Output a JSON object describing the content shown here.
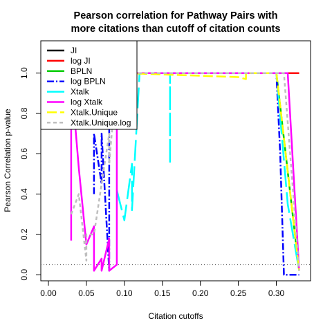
{
  "chart_data": {
    "type": "line",
    "title_lines": [
      "Pearson correlation for Pathway Pairs with",
      "more citations than cutoff of citation counts"
    ],
    "xlabel": "Citation cutoffs",
    "ylabel": "Pearson Correlation p-value",
    "xlim": [
      -0.01,
      0.345
    ],
    "ylim": [
      -0.03,
      1.16
    ],
    "x_ticks": [
      0.0,
      0.05,
      0.1,
      0.15,
      0.2,
      0.25,
      0.3
    ],
    "x_tick_labels": [
      "0.00",
      "0.05",
      "0.10",
      "0.15",
      "0.20",
      "0.25",
      "0.30"
    ],
    "y_ticks": [
      0.0,
      0.2,
      0.4,
      0.6,
      0.8,
      1.0
    ],
    "y_tick_labels": [
      "0.0",
      "0.2",
      "0.4",
      "0.6",
      "0.8",
      "1.0"
    ],
    "reference_line": {
      "y": 0.05,
      "style": "dotted",
      "color": "#555555"
    },
    "legend_position": "top-left",
    "series": [
      {
        "name": "JI",
        "color": "#000000",
        "dash": "",
        "width": 2.5,
        "x": [
          0.1,
          0.33
        ],
        "y": [
          1.0,
          1.0
        ]
      },
      {
        "name": "log JI",
        "color": "#ff0000",
        "dash": "",
        "width": 2.5,
        "x": [
          0.1,
          0.33
        ],
        "y": [
          1.0,
          1.0
        ]
      },
      {
        "name": "BPLN",
        "color": "#00cd00",
        "dash": "",
        "width": 2.5,
        "x": [
          0.1,
          0.3,
          0.33
        ],
        "y": [
          1.0,
          1.0,
          0.02
        ]
      },
      {
        "name": "log BPLN",
        "color": "#0000ff",
        "dash": "10,3,2,3",
        "width": 2.5,
        "x": [
          0.06,
          0.06,
          0.07,
          0.07,
          0.08,
          0.08,
          0.09,
          0.1,
          0.3,
          0.305,
          0.31,
          0.31,
          0.32,
          0.33
        ],
        "y": [
          0.4,
          0.7,
          0.45,
          0.7,
          0.02,
          1.0,
          1.0,
          1.0,
          1.0,
          0.6,
          0.0,
          0.0,
          0.0,
          0.0
        ]
      },
      {
        "name": "Xtalk",
        "color": "#00ffff",
        "dash": "30,8",
        "width": 2.5,
        "x": [
          0.09,
          0.1,
          0.11,
          0.11,
          0.12,
          0.16,
          0.16,
          0.16,
          0.17,
          0.3,
          0.315,
          0.33
        ],
        "y": [
          0.42,
          0.27,
          0.55,
          0.32,
          1.0,
          1.0,
          0.55,
          1.0,
          1.0,
          1.0,
          0.35,
          0.02
        ]
      },
      {
        "name": "log Xtalk",
        "color": "#ff00ff",
        "dash": "",
        "width": 2.5,
        "x": [
          0.03,
          0.03,
          0.04,
          0.05,
          0.06,
          0.06,
          0.07,
          0.07,
          0.08,
          0.08,
          0.09,
          0.09,
          0.1,
          0.31,
          0.315,
          0.33
        ],
        "y": [
          0.17,
          0.98,
          0.53,
          0.15,
          0.24,
          0.02,
          0.08,
          0.02,
          0.18,
          0.02,
          0.05,
          1.0,
          1.0,
          1.0,
          1.0,
          0.02
        ]
      },
      {
        "name": "Xtalk.Unique",
        "color": "#ffff00",
        "dash": "14,5",
        "width": 2.5,
        "x": [
          0.1,
          0.25,
          0.26,
          0.26,
          0.3,
          0.33
        ],
        "y": [
          1.0,
          0.98,
          0.97,
          1.0,
          1.0,
          0.02
        ]
      },
      {
        "name": "Xtalk.Unique.log",
        "color": "#bebebe",
        "dash": "5,4",
        "width": 2.5,
        "x": [
          0.03,
          0.04,
          0.05,
          0.05,
          0.06,
          0.08,
          0.08,
          0.09,
          0.1,
          0.3,
          0.31,
          0.33
        ],
        "y": [
          0.3,
          0.4,
          0.07,
          0.2,
          0.2,
          0.7,
          0.55,
          1.0,
          1.0,
          1.0,
          1.0,
          0.02
        ]
      }
    ]
  }
}
